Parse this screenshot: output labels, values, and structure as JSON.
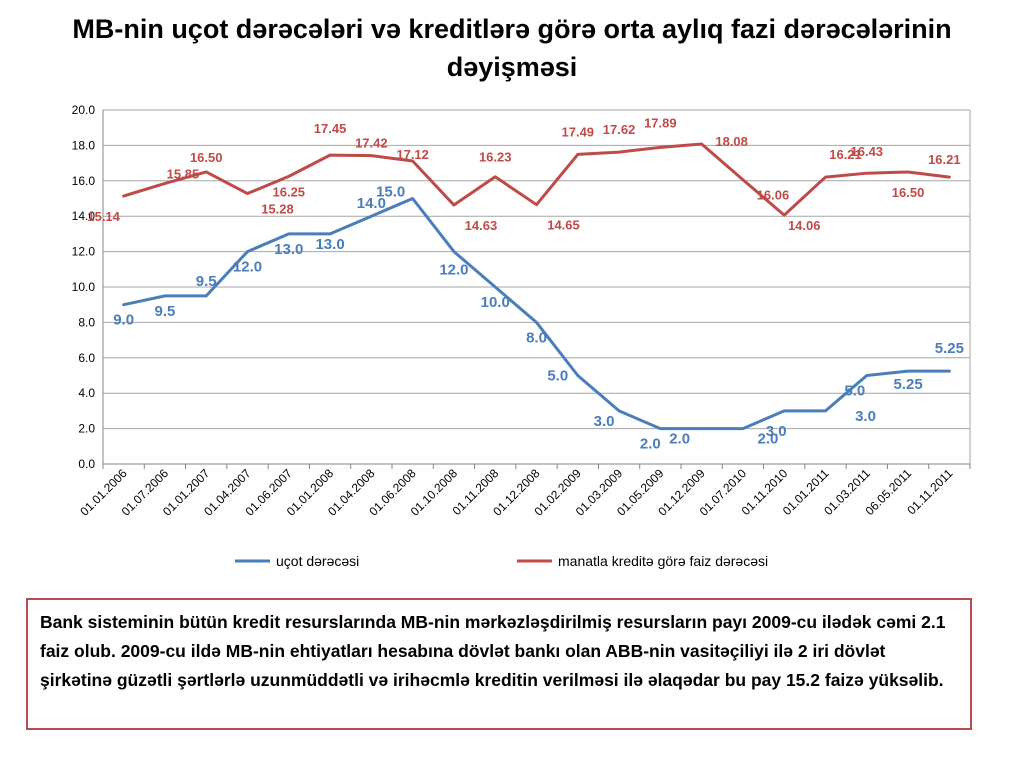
{
  "title": "MB-nin uçot dərəcələri və kreditlərə görə orta aylıq fazi dərəcələrinin dəyişməsi",
  "note": "Bank sisteminin bütün kredit resurslarında MB-nin mərkəzləşdirilmiş resursların payı 2009-cu ilədək cəmi 2.1 faiz olub. 2009-cu ildə MB-nin ehtiyatları hesabına dövlət bankı olan ABB-nin vasitəçiliyi ilə 2 iri dövlət şirkətinə güzətli şərtlərlə uzunmüddətli və irihəcmlə kreditin verilməsi ilə əlaqədar bu pay 15.2 faizə yüksəlib.",
  "chart_data": {
    "type": "line",
    "categories": [
      "01.01.2006",
      "01.07.2006",
      "01.01.2007",
      "01.04.2007",
      "01.06.2007",
      "01.01.2008",
      "01.04.2008",
      "01.06.2008",
      "01.10.2008",
      "01.11.2008",
      "01.12.2008",
      "01.02.2009",
      "01.03.2009",
      "01.05.2009",
      "01.12.2009",
      "01.07.2010",
      "01.11.2010",
      "01.01.2011",
      "01.03.2011",
      "06.05.2011",
      "01.11.2011"
    ],
    "y_ticks": [
      "0.0",
      "2.0",
      "4.0",
      "6.0",
      "8.0",
      "10.0",
      "12.0",
      "14.0",
      "16.0",
      "18.0",
      "20.0"
    ],
    "ylim": [
      0,
      20
    ],
    "grid": true,
    "legend_position": "bottom",
    "series": [
      {
        "name": "uçot dərəcəsi",
        "color": "#4a7ebb",
        "values": [
          9.0,
          9.5,
          9.5,
          12.0,
          13.0,
          13.0,
          14.0,
          15.0,
          12.0,
          10.0,
          8.0,
          5.0,
          3.0,
          2.0,
          2.0,
          2.0,
          3.0,
          3.0,
          5.0,
          5.25,
          5.25
        ],
        "labels": [
          "9.0",
          "9.5",
          "9.5",
          "12.0",
          "13.0",
          "13.0",
          "14.0",
          "15.0",
          "12.0",
          "10.0",
          "8.0",
          "5.0",
          "3.0",
          "2.0",
          "2.0",
          "2.0",
          "3.0",
          "3.0",
          "5.0",
          "5.25",
          "5.25"
        ]
      },
      {
        "name": "manatla kreditə görə faiz dərəcəsi",
        "color": "#be4b48",
        "values": [
          15.14,
          15.85,
          16.5,
          15.28,
          16.25,
          17.45,
          17.42,
          17.12,
          14.63,
          16.23,
          14.65,
          17.49,
          17.62,
          17.89,
          18.08,
          16.06,
          14.06,
          16.21,
          16.43,
          16.5,
          16.21
        ],
        "labels": [
          "15.14",
          "15.85",
          "16.50",
          "15.28",
          "16.25",
          "17.45",
          "17.42",
          "17.12",
          "14.63",
          "16.23",
          "14.65",
          "17.49",
          "17.62",
          "17.89",
          "18.08",
          "16.06",
          "14.06",
          "16.21",
          "16.43",
          "16.50",
          "16.21"
        ]
      }
    ]
  }
}
